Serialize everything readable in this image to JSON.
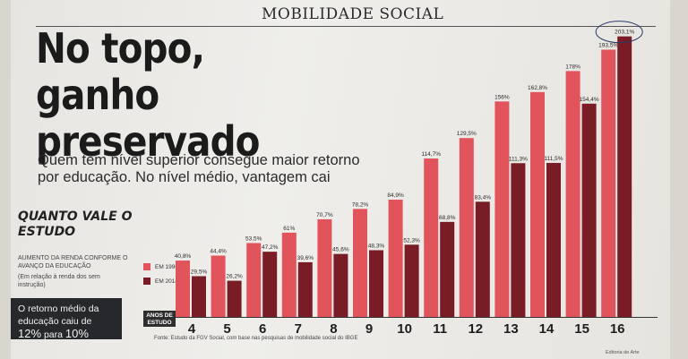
{
  "section": "MOBILIDADE SOCIAL",
  "headline": "No topo, ganho preservado",
  "subtitle": "Quem tem nível superior consegue maior retorno por educação. No nível médio, vantagem cai",
  "sidebar": {
    "title": "QUANTO VALE O ESTUDO",
    "description": "AUMENTO DA RENDA CONFORME O AVANÇO DA EDUCAÇÃO",
    "note": "(Em relação à renda dos sem instrução)"
  },
  "callout": {
    "text_before": "O retorno médio da educação caiu de ",
    "from": "12%",
    "middle": " para ",
    "to": "10%"
  },
  "source": "Fonte: Estudo da FGV Social, com base nas pesquisas de mobilidade social do IBGE",
  "credit": "Editoria de Arte",
  "colors": {
    "series_1996": "#e2545c",
    "series_2014": "#7a1c26",
    "ink": "#222222"
  },
  "chart_data": {
    "type": "bar",
    "xlabel": "ANOS DE ESTUDO",
    "categories": [
      "4",
      "5",
      "6",
      "7",
      "8",
      "9",
      "10",
      "11",
      "12",
      "13",
      "14",
      "15",
      "16"
    ],
    "series": [
      {
        "name": "EM 1996",
        "values": [
          40.8,
          44.4,
          53.5,
          61,
          70.7,
          78.2,
          84.9,
          114.7,
          129.5,
          156,
          162.8,
          178,
          193.5
        ],
        "labels": [
          "40,8%",
          "44,4%",
          "53,5%",
          "61%",
          "70,7%",
          "78,2%",
          "84,9%",
          "114,7%",
          "129,5%",
          "156%",
          "162,8%",
          "178%",
          "193,5%"
        ]
      },
      {
        "name": "EM 2014",
        "values": [
          29.5,
          26.2,
          47.2,
          39.6,
          45.6,
          48.3,
          52.3,
          68.8,
          83.4,
          111.3,
          111.5,
          154.4,
          203.1
        ],
        "labels": [
          "29,5%",
          "26,2%",
          "47,2%",
          "39,6%",
          "45,6%",
          "48,3%",
          "52,3%",
          "68,8%",
          "83,4%",
          "111,3%",
          "111,5%",
          "154,4%",
          "203,1%"
        ]
      }
    ],
    "ylim": [
      0,
      210
    ],
    "highlight": {
      "series": 1,
      "category": "16"
    }
  }
}
